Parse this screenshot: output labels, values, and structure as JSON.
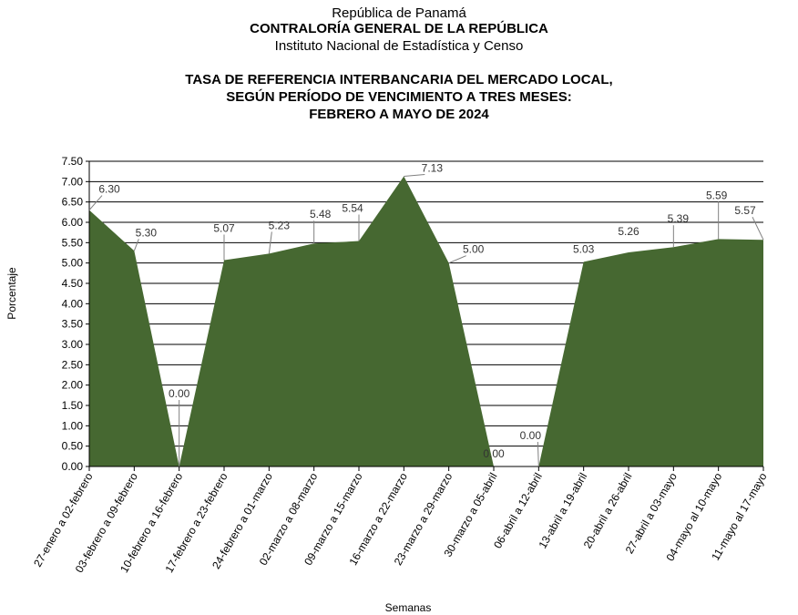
{
  "header": {
    "line1": "República de Panamá",
    "line2": "CONTRALORÍA GENERAL DE LA REPÚBLICA",
    "line3": "Instituto Nacional de Estadística y Censo"
  },
  "chart_data": {
    "type": "area",
    "title_lines": [
      "TASA DE REFERENCIA INTERBANCARIA DEL MERCADO LOCAL,",
      "SEGÚN PERÍODO DE VENCIMIENTO A TRES MESES:",
      "FEBRERO A MAYO DE 2024"
    ],
    "xlabel": "Semanas",
    "ylabel": "Porcentaje",
    "ylim": [
      0,
      7.5
    ],
    "ytick_step": 0.5,
    "grid": true,
    "legend": "none",
    "fill_color": "#466831",
    "categories": [
      "27-enero a 02-febrero",
      "03-febrero a 09-febrero",
      "10-febrero a 16-febrero",
      "17-febrero a 23-febrero",
      "24-febrero a 01-marzo",
      "02-marzo a 08-marzo",
      "09-marzo a 15-marzo",
      "16-marzo a 22-marzo",
      "23-marzo a 29-marzo",
      "30-marzo a 05-abril",
      "06-abril a 12-abril",
      "13-abril a 19-abril",
      "20-abril a 26-abril",
      "27-abril a 03-mayo",
      "04-mayo al 10-mayo",
      "11-mayo al 17-mayo"
    ],
    "values": [
      6.3,
      5.3,
      0.0,
      5.07,
      5.23,
      5.48,
      5.54,
      7.13,
      5.0,
      0.0,
      0.0,
      5.03,
      5.26,
      5.39,
      5.59,
      5.57
    ],
    "data_labels": [
      "6.30",
      "5.30",
      "0.00",
      "5.07",
      "5.23",
      "5.48",
      "5.54",
      "7.13",
      "5.00",
      "0.00",
      "0.00",
      "5.03",
      "5.26",
      "5.39",
      "5.59",
      "5.57"
    ]
  }
}
